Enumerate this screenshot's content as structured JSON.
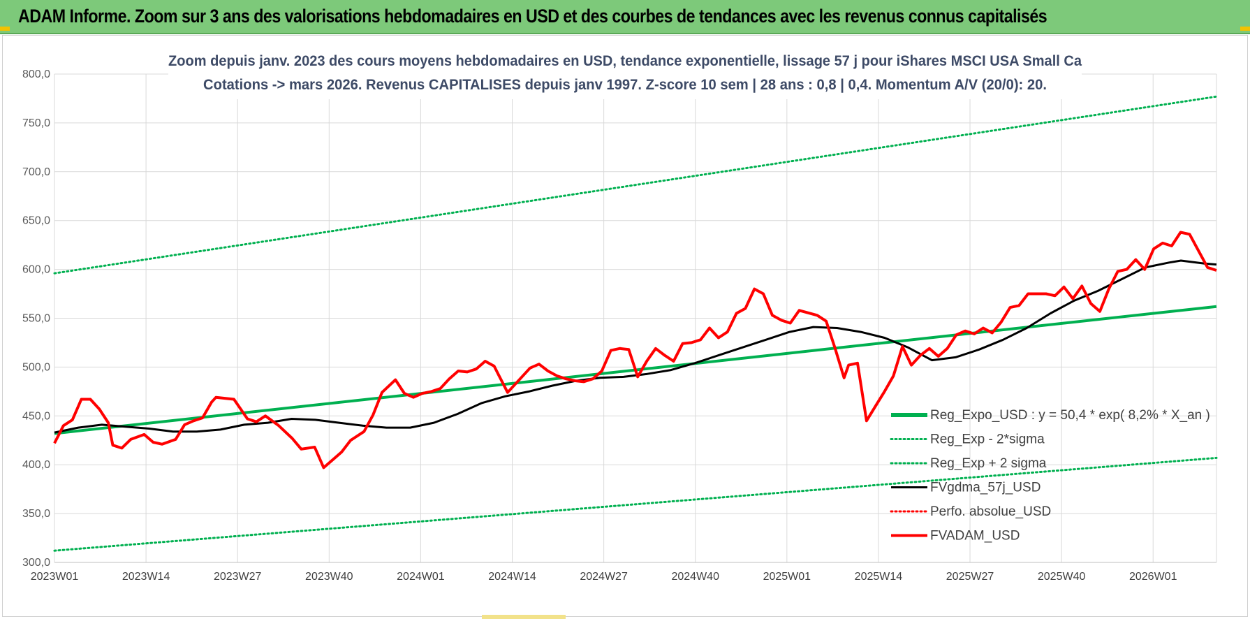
{
  "banner": {
    "title": "ADAM Informe. Zoom sur 3 ans des valorisations hebdomadaires en USD et des courbes de tendances avec les revenus connus capitalisés",
    "color": "#7dc97a"
  },
  "chart_data": {
    "type": "line",
    "title": "Zoom depuis janv. 2023 des cours moyens hebdomadaires en USD, tendance exponentielle, lissage 57 j pour iShares MSCI USA Small Ca",
    "subtitle": "Cotations -> mars 2026. Revenus CAPITALISES depuis janv 1997. Z-score 10 sem | 28 ans : 0,8 | 0,4. Momentum A/V (20/0): 20.",
    "xlabel": "",
    "ylabel": "",
    "ylim": [
      300,
      800
    ],
    "yticks": [
      "300,0",
      "350,0",
      "400,0",
      "450,0",
      "500,0",
      "550,0",
      "600,0",
      "650,0",
      "700,0",
      "750,0",
      "800,0"
    ],
    "xticks": [
      "2023W01",
      "2023W14",
      "2023W27",
      "2023W40",
      "2024W01",
      "2024W14",
      "2024W27",
      "2024W40",
      "2025W01",
      "2025W14",
      "2025W27",
      "2025W40",
      "2026W01"
    ],
    "x_range_weeks": [
      0,
      165
    ],
    "grid": true,
    "legend_position": "bottom-right",
    "series": [
      {
        "name": "Reg_Expo_USD : y = 50,4 * exp( 8,2% *  X_an )",
        "color": "#00b050",
        "style": "solid-thick",
        "points": [
          [
            0,
            432
          ],
          [
            165,
            562
          ]
        ]
      },
      {
        "name": "Reg_Exp - 2*sigma",
        "color": "#00b050",
        "style": "dotted",
        "points": [
          [
            0,
            312
          ],
          [
            165,
            407
          ]
        ]
      },
      {
        "name": "Reg_Exp + 2 sigma",
        "color": "#00b050",
        "style": "dotted",
        "points": [
          [
            0,
            596
          ],
          [
            165,
            777
          ]
        ]
      },
      {
        "name": "FVgdma_57j_USD",
        "color": "#000000",
        "style": "solid",
        "points": [
          [
            0,
            433
          ],
          [
            4,
            438
          ],
          [
            8,
            441
          ],
          [
            12,
            439
          ],
          [
            16,
            437
          ],
          [
            20,
            434
          ],
          [
            24,
            434
          ],
          [
            28,
            436
          ],
          [
            32,
            441
          ],
          [
            36,
            443
          ],
          [
            40,
            447
          ],
          [
            44,
            446
          ],
          [
            48,
            443
          ],
          [
            52,
            440
          ],
          [
            56,
            438
          ],
          [
            60,
            438
          ],
          [
            64,
            443
          ],
          [
            68,
            452
          ],
          [
            72,
            463
          ],
          [
            76,
            470
          ],
          [
            80,
            475
          ],
          [
            84,
            481
          ],
          [
            88,
            486
          ],
          [
            92,
            489
          ],
          [
            96,
            490
          ],
          [
            100,
            493
          ],
          [
            104,
            497
          ],
          [
            108,
            504
          ],
          [
            112,
            512
          ],
          [
            116,
            520
          ],
          [
            120,
            528
          ],
          [
            124,
            536
          ],
          [
            128,
            541
          ],
          [
            132,
            540
          ],
          [
            136,
            536
          ],
          [
            140,
            530
          ],
          [
            144,
            520
          ],
          [
            148,
            507
          ],
          [
            152,
            510
          ],
          [
            156,
            518
          ],
          [
            160,
            528
          ],
          [
            164,
            540
          ],
          [
            168,
            555
          ],
          [
            172,
            568
          ],
          [
            176,
            578
          ],
          [
            180,
            590
          ],
          [
            184,
            602
          ],
          [
            188,
            607
          ],
          [
            190,
            609
          ],
          [
            194,
            606
          ],
          [
            196,
            605
          ]
        ]
      },
      {
        "name": "Perfo. absolue_USD",
        "color": "#ff0000",
        "style": "dotted",
        "points": []
      },
      {
        "name": "FVADAM_USD",
        "color": "#ff0000",
        "style": "solid-thick",
        "points": [
          [
            0,
            422
          ],
          [
            2,
            440
          ],
          [
            4,
            446
          ],
          [
            6,
            467
          ],
          [
            8,
            467
          ],
          [
            10,
            457
          ],
          [
            12,
            443
          ],
          [
            13,
            420
          ],
          [
            15,
            417
          ],
          [
            17,
            426
          ],
          [
            20,
            431
          ],
          [
            22,
            423
          ],
          [
            24,
            421
          ],
          [
            27,
            426
          ],
          [
            29,
            441
          ],
          [
            31,
            445
          ],
          [
            33,
            448
          ],
          [
            35,
            464
          ],
          [
            36,
            469
          ],
          [
            40,
            467
          ],
          [
            43,
            447
          ],
          [
            45,
            444
          ],
          [
            47,
            450
          ],
          [
            50,
            440
          ],
          [
            53,
            427
          ],
          [
            55,
            416
          ],
          [
            58,
            418
          ],
          [
            60,
            397
          ],
          [
            62,
            405
          ],
          [
            64,
            413
          ],
          [
            66,
            425
          ],
          [
            69,
            434
          ],
          [
            71,
            451
          ],
          [
            73,
            474
          ],
          [
            76,
            487
          ],
          [
            78,
            473
          ],
          [
            80,
            469
          ],
          [
            82,
            473
          ],
          [
            84,
            475
          ],
          [
            86,
            478
          ],
          [
            88,
            488
          ],
          [
            90,
            496
          ],
          [
            92,
            495
          ],
          [
            94,
            498
          ],
          [
            96,
            506
          ],
          [
            98,
            501
          ],
          [
            99,
            492
          ],
          [
            101,
            474
          ],
          [
            103,
            484
          ],
          [
            106,
            499
          ],
          [
            108,
            503
          ],
          [
            110,
            496
          ],
          [
            112,
            491
          ],
          [
            114,
            488
          ],
          [
            116,
            486
          ],
          [
            118,
            485
          ],
          [
            120,
            488
          ],
          [
            122,
            496
          ],
          [
            124,
            517
          ],
          [
            126,
            519
          ],
          [
            128,
            518
          ],
          [
            130,
            490
          ],
          [
            132,
            506
          ],
          [
            134,
            519
          ],
          [
            136,
            512
          ],
          [
            138,
            506
          ],
          [
            140,
            524
          ],
          [
            142,
            525
          ],
          [
            144,
            528
          ],
          [
            146,
            540
          ],
          [
            148,
            530
          ],
          [
            150,
            536
          ],
          [
            152,
            555
          ],
          [
            154,
            560
          ],
          [
            156,
            580
          ],
          [
            158,
            575
          ],
          [
            160,
            553
          ],
          [
            162,
            548
          ],
          [
            164,
            545
          ],
          [
            166,
            558
          ],
          [
            170,
            553
          ],
          [
            172,
            547
          ],
          [
            174,
            519
          ],
          [
            176,
            489
          ],
          [
            177,
            502
          ],
          [
            179,
            504
          ],
          [
            181,
            445
          ],
          [
            183,
            460
          ],
          [
            185,
            475
          ],
          [
            187,
            491
          ],
          [
            189,
            521
          ],
          [
            191,
            502
          ],
          [
            193,
            512
          ],
          [
            195,
            519
          ],
          [
            197,
            511
          ],
          [
            199,
            519
          ],
          [
            201,
            533
          ],
          [
            203,
            537
          ],
          [
            205,
            534
          ],
          [
            207,
            540
          ],
          [
            209,
            535
          ],
          [
            211,
            546
          ],
          [
            213,
            561
          ],
          [
            215,
            563
          ],
          [
            217,
            575
          ],
          [
            219,
            575
          ],
          [
            221,
            575
          ],
          [
            223,
            573
          ],
          [
            225,
            582
          ],
          [
            227,
            570
          ],
          [
            229,
            583
          ],
          [
            231,
            565
          ],
          [
            233,
            557
          ],
          [
            235,
            580
          ],
          [
            237,
            598
          ],
          [
            239,
            600
          ],
          [
            241,
            610
          ],
          [
            243,
            600
          ],
          [
            245,
            621
          ],
          [
            247,
            627
          ],
          [
            249,
            624
          ],
          [
            251,
            638
          ],
          [
            253,
            636
          ],
          [
            255,
            619
          ],
          [
            257,
            602
          ],
          [
            259,
            599
          ]
        ]
      }
    ]
  }
}
